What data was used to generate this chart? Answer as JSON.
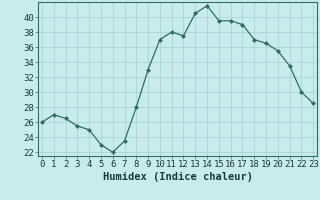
{
  "x": [
    0,
    1,
    2,
    3,
    4,
    5,
    6,
    7,
    8,
    9,
    10,
    11,
    12,
    13,
    14,
    15,
    16,
    17,
    18,
    19,
    20,
    21,
    22,
    23
  ],
  "y": [
    26,
    27,
    26.5,
    25.5,
    25,
    23,
    22,
    23.5,
    28,
    33,
    37,
    38,
    37.5,
    40.5,
    41.5,
    39.5,
    39.5,
    39,
    37,
    36.5,
    35.5,
    33.5,
    30,
    28.5
  ],
  "line_color": "#2e7060",
  "marker_color": "#2e7060",
  "bg_color": "#c8ecec",
  "grid_color": "#a8d0d0",
  "xlabel": "Humidex (Indice chaleur)",
  "xlabel_fontsize": 7.5,
  "tick_fontsize": 6.5,
  "ylim": [
    21.5,
    42
  ],
  "xlim": [
    -0.3,
    23.3
  ],
  "yticks": [
    22,
    24,
    26,
    28,
    30,
    32,
    34,
    36,
    38,
    40
  ],
  "xticks": [
    0,
    1,
    2,
    3,
    4,
    5,
    6,
    7,
    8,
    9,
    10,
    11,
    12,
    13,
    14,
    15,
    16,
    17,
    18,
    19,
    20,
    21,
    22,
    23
  ]
}
